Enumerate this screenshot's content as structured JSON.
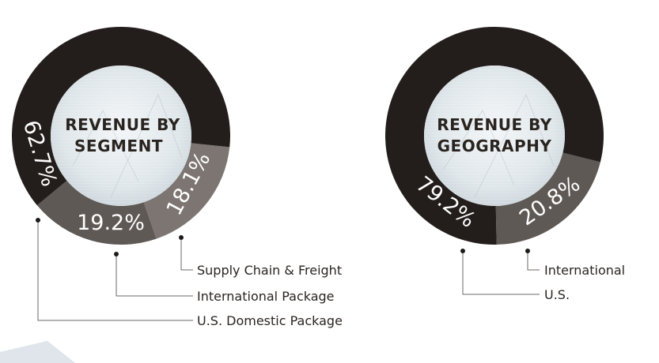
{
  "chart_data": [
    {
      "type": "pie",
      "style": "donut",
      "title": "REVENUE BY SEGMENT",
      "title_lines": [
        "REVENUE BY",
        "SEGMENT"
      ],
      "slices": [
        {
          "label": "U.S. Domestic Package",
          "value": 62.7,
          "display": "62.7%",
          "color": "#231e1b"
        },
        {
          "label": "International Package",
          "value": 19.2,
          "display": "19.2%",
          "color": "#5f5955"
        },
        {
          "label": "Supply Chain & Freight",
          "value": 18.1,
          "display": "18.1%",
          "color": "#7c7571"
        }
      ],
      "legend": [
        "Supply Chain & Freight",
        "International Package",
        "U.S. Domestic Package"
      ]
    },
    {
      "type": "pie",
      "style": "donut",
      "title": "REVENUE BY GEOGRAPHY",
      "title_lines": [
        "REVENUE BY",
        "GEOGRAPHY"
      ],
      "slices": [
        {
          "label": "U.S.",
          "value": 79.2,
          "display": "79.2%",
          "color": "#231e1b"
        },
        {
          "label": "International",
          "value": 20.8,
          "display": "20.8%",
          "color": "#5f5955"
        }
      ],
      "legend": [
        "International",
        "U.S."
      ]
    }
  ]
}
